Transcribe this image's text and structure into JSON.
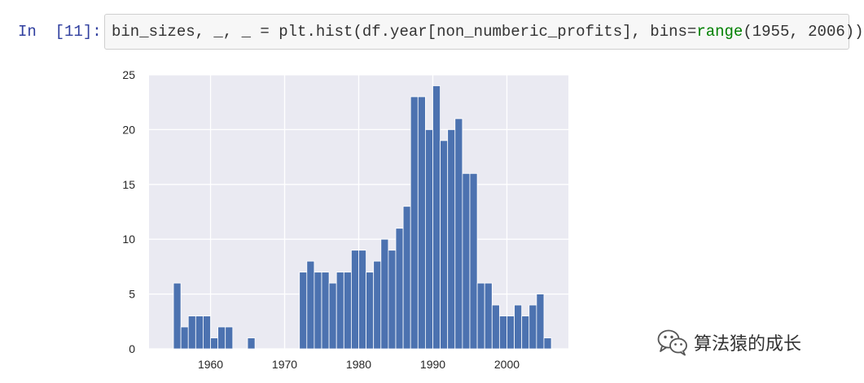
{
  "cell": {
    "prompt": "In  [11]:",
    "code_parts": [
      {
        "text": "bin_sizes, _, _ = plt.hist(df.year[non_numberic_profits], bins=",
        "cls": "plain"
      },
      {
        "text": "range",
        "cls": "kw"
      },
      {
        "text": "(1955, 2006))",
        "cls": "plain"
      }
    ]
  },
  "chart_data": {
    "type": "bar",
    "x": [
      1955,
      1956,
      1957,
      1958,
      1959,
      1960,
      1961,
      1962,
      1963,
      1964,
      1965,
      1966,
      1967,
      1968,
      1969,
      1970,
      1971,
      1972,
      1973,
      1974,
      1975,
      1976,
      1977,
      1978,
      1979,
      1980,
      1981,
      1982,
      1983,
      1984,
      1985,
      1986,
      1987,
      1988,
      1989,
      1990,
      1991,
      1992,
      1993,
      1994,
      1995,
      1996,
      1997,
      1998,
      1999,
      2000,
      2001,
      2002,
      2003,
      2004,
      2005
    ],
    "values": [
      6,
      2,
      3,
      3,
      3,
      1,
      2,
      2,
      0,
      0,
      1,
      0,
      0,
      0,
      0,
      0,
      0,
      7,
      8,
      7,
      7,
      6,
      7,
      7,
      9,
      9,
      7,
      8,
      10,
      9,
      11,
      13,
      23,
      23,
      20,
      24,
      19,
      20,
      21,
      16,
      16,
      6,
      6,
      4,
      3,
      3,
      4,
      3,
      4,
      5,
      1
    ],
    "xlim": [
      1951.7,
      2008.3
    ],
    "ylim": [
      0,
      25
    ],
    "xticks": [
      "1960",
      "1970",
      "1980",
      "1990",
      "2000"
    ],
    "yticks": [
      "0",
      "5",
      "10",
      "15",
      "20",
      "25"
    ],
    "bar_color": "#4c72b0",
    "background": "#eaeaf2",
    "grid_color": "#ffffff",
    "grid": true
  },
  "watermark": {
    "text": "算法猿的成长",
    "icon": "wechat-icon"
  }
}
